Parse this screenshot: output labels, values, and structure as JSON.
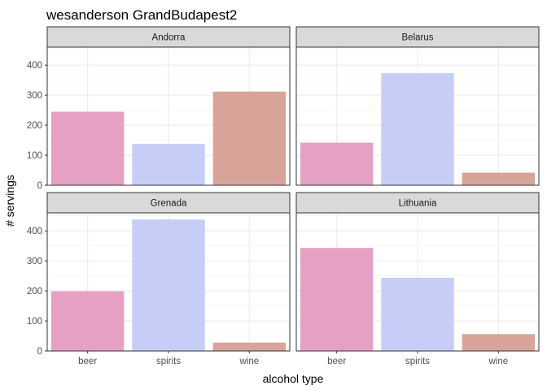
{
  "chart_data": {
    "type": "bar",
    "title": "wesanderson GrandBudapest2",
    "xlabel": "alcohol type",
    "ylabel": "# servings",
    "categories": [
      "beer",
      "spirits",
      "wine"
    ],
    "colors": [
      "#E6A0C4",
      "#C6CDF7",
      "#D8A499"
    ],
    "ylim": [
      0,
      460
    ],
    "yticks": [
      0,
      100,
      200,
      300,
      400
    ],
    "facets": [
      {
        "name": "Andorra",
        "values": [
          245,
          138,
          312
        ]
      },
      {
        "name": "Belarus",
        "values": [
          142,
          373,
          42
        ]
      },
      {
        "name": "Grenada",
        "values": [
          199,
          438,
          28
        ]
      },
      {
        "name": "Lithuania",
        "values": [
          343,
          244,
          56
        ]
      }
    ],
    "grid": true,
    "legend": "none"
  }
}
